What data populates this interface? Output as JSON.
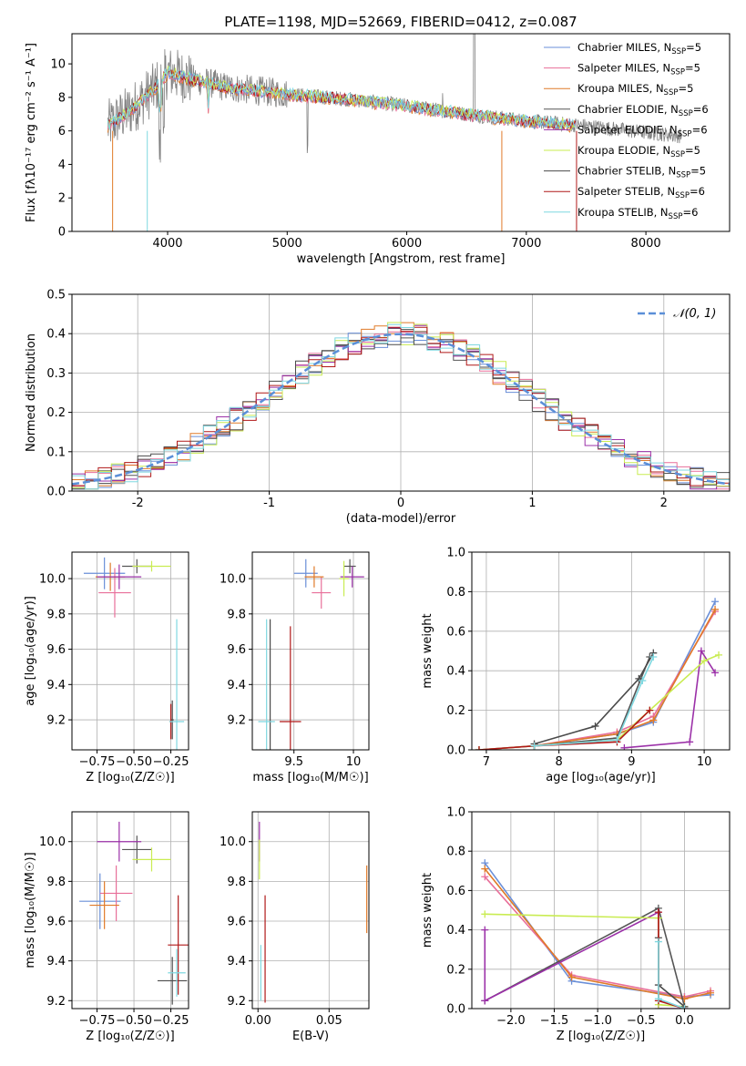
{
  "figure": {
    "title": "PLATE=1198, MJD=52669, FIBERID=0412, z=0.087"
  },
  "colors": {
    "Chabrier MILES": "#6a8fd8",
    "Salpeter MILES": "#e86f9a",
    "Kroupa MILES": "#e07a28",
    "Chabrier ELODIE": "#555555",
    "Salpeter ELODIE": "#9b30a8",
    "Kroupa ELODIE": "#c9ec52",
    "Chabrier STELIB": "#4a4a4a",
    "Salpeter STELIB": "#b01818",
    "Kroupa STELIB": "#7fd8e0",
    "data": "#808080",
    "normal": "#5b8fd8"
  },
  "chart_data": [
    {
      "id": "spectrum",
      "type": "line",
      "xlabel": "wavelength [Angstrom, rest frame]",
      "ylabel": "Flux [fλ10⁻¹⁷ erg cm⁻² s⁻¹ A⁻¹]",
      "xlim": [
        3200,
        8700
      ],
      "ylim": [
        0,
        11.8
      ],
      "xticks": [
        4000,
        5000,
        6000,
        7000,
        8000
      ],
      "yticks": [
        0,
        2,
        4,
        6,
        8,
        10
      ],
      "grid": false,
      "legend_position": "top-right",
      "legend": [
        {
          "label": "Chabrier MILES, N",
          "sub": "SSP",
          "suffix": "=5"
        },
        {
          "label": "Salpeter MILES, N",
          "sub": "SSP",
          "suffix": "=5"
        },
        {
          "label": "Kroupa MILES, N",
          "sub": "SSP",
          "suffix": "=5"
        },
        {
          "label": "Chabrier ELODIE, N",
          "sub": "SSP",
          "suffix": "=6"
        },
        {
          "label": "Salpeter ELODIE, N",
          "sub": "SSP",
          "suffix": "=6"
        },
        {
          "label": "Kroupa ELODIE, N",
          "sub": "SSP",
          "suffix": "=5"
        },
        {
          "label": "Chabrier STELIB, N",
          "sub": "SSP",
          "suffix": "=5"
        },
        {
          "label": "Salpeter STELIB, N",
          "sub": "SSP",
          "suffix": "=6"
        },
        {
          "label": "Kroupa STELIB, N",
          "sub": "SSP",
          "suffix": "=6"
        }
      ],
      "observed_continuum": {
        "x": [
          3500,
          3700,
          3900,
          4000,
          4200,
          4500,
          5000,
          5500,
          6000,
          6500,
          7000,
          7500,
          8000,
          8300
        ],
        "y": [
          6.3,
          7.3,
          8.6,
          9.5,
          9.1,
          8.6,
          8.2,
          7.9,
          7.5,
          7.0,
          6.6,
          6.3,
          5.9,
          5.7
        ]
      },
      "model_continuum": {
        "x": [
          3500,
          3700,
          3900,
          4000,
          4200,
          4500,
          5000,
          5500,
          6000,
          6500,
          7000,
          7500
        ],
        "y": [
          6.2,
          7.2,
          8.5,
          9.4,
          9.0,
          8.5,
          8.1,
          7.8,
          7.4,
          6.9,
          6.5,
          6.2
        ]
      },
      "model_end_wavelength": 7420
    },
    {
      "id": "residuals",
      "type": "line",
      "xlabel": "(data-model)/error",
      "ylabel": "Normed distribution",
      "xlim": [
        -2.5,
        2.5
      ],
      "ylim": [
        0,
        0.5
      ],
      "xticks": [
        -2,
        -1,
        0,
        1,
        2
      ],
      "yticks": [
        0.0,
        0.1,
        0.2,
        0.3,
        0.4,
        0.5
      ],
      "grid": true,
      "legend_position": "top-right",
      "legend_label": "𝒩(0, 1)",
      "normal_mean": 0,
      "normal_sigma": 1
    },
    {
      "id": "age_vs_Z",
      "type": "scatter",
      "xlabel": "Z [log₁₀(Z/Z☉)]",
      "ylabel": "age  [log₁₀(age/yr)]",
      "xlim": [
        -0.92,
        -0.13
      ],
      "ylim": [
        9.03,
        10.15
      ],
      "xticks": [
        -0.75,
        -0.5,
        -0.25
      ],
      "xticklabels": [
        "−0.75",
        "−0.50",
        "−0.25"
      ],
      "yticks": [
        9.2,
        9.4,
        9.6,
        9.8,
        10.0
      ],
      "grid": true,
      "points": [
        {
          "model": "Chabrier MILES",
          "x": -0.7,
          "xerr": 0.14,
          "y": 10.03,
          "yerr": 0.09
        },
        {
          "model": "Salpeter MILES",
          "x": -0.63,
          "xerr": 0.11,
          "y": 9.92,
          "yerr": 0.14
        },
        {
          "model": "Kroupa MILES",
          "x": -0.66,
          "xerr": 0.1,
          "y": 10.01,
          "yerr": 0.08
        },
        {
          "model": "Chabrier ELODIE",
          "x": -0.48,
          "xerr": 0.1,
          "y": 10.07,
          "yerr": 0.04
        },
        {
          "model": "Salpeter ELODIE",
          "x": -0.6,
          "xerr": 0.15,
          "y": 10.01,
          "yerr": 0.07
        },
        {
          "model": "Kroupa ELODIE",
          "x": -0.38,
          "xerr": 0.13,
          "y": 10.07,
          "yerr": 0.03
        },
        {
          "model": "Chabrier STELIB",
          "x": -0.24,
          "xerr": 0.01,
          "y": 9.2,
          "yerr": 0.11
        },
        {
          "model": "Salpeter STELIB",
          "x": -0.25,
          "xerr": 0.01,
          "y": 9.19,
          "yerr": 0.1
        },
        {
          "model": "Kroupa STELIB",
          "x": -0.21,
          "xerr": 0.05,
          "y": 9.19,
          "yerr": 0.58
        }
      ]
    },
    {
      "id": "age_vs_mass",
      "type": "scatter",
      "xlabel": "mass [log₁₀(M/M☉)]",
      "ylabel": "",
      "xlim": [
        9.15,
        10.13
      ],
      "ylim": [
        9.03,
        10.15
      ],
      "xticks": [
        9.5,
        10.0
      ],
      "yticks": [
        9.2,
        9.4,
        9.6,
        9.8,
        10.0
      ],
      "grid": true,
      "points": [
        {
          "model": "Chabrier MILES",
          "x": 9.6,
          "xerr": 0.1,
          "y": 10.03,
          "yerr": 0.08
        },
        {
          "model": "Salpeter MILES",
          "x": 9.73,
          "xerr": 0.08,
          "y": 9.92,
          "yerr": 0.09
        },
        {
          "model": "Kroupa MILES",
          "x": 9.67,
          "xerr": 0.08,
          "y": 10.01,
          "yerr": 0.06
        },
        {
          "model": "Chabrier ELODIE",
          "x": 9.97,
          "xerr": 0.05,
          "y": 10.07,
          "yerr": 0.04
        },
        {
          "model": "Salpeter ELODIE",
          "x": 9.99,
          "xerr": 0.1,
          "y": 10.01,
          "yerr": 0.06
        },
        {
          "model": "Kroupa ELODIE",
          "x": 9.92,
          "xerr": 0.04,
          "y": 10.0,
          "yerr": 0.1
        },
        {
          "model": "Chabrier STELIB",
          "x": 9.3,
          "xerr": 0.01,
          "y": 9.19,
          "yerr": 0.58
        },
        {
          "model": "Salpeter STELIB",
          "x": 9.47,
          "xerr": 0.09,
          "y": 9.19,
          "yerr": 0.54
        },
        {
          "model": "Kroupa STELIB",
          "x": 9.27,
          "xerr": 0.07,
          "y": 9.19,
          "yerr": 0.58
        }
      ]
    },
    {
      "id": "massweight_vs_age",
      "type": "line",
      "xlabel": "age  [log₁₀(age/yr)]",
      "ylabel": "mass weight",
      "xlim": [
        6.8,
        10.35
      ],
      "ylim": [
        0,
        1.0
      ],
      "xticks": [
        7,
        8,
        9,
        10
      ],
      "yticks": [
        0.0,
        0.2,
        0.4,
        0.6,
        0.8,
        1.0
      ],
      "grid": true,
      "series": [
        {
          "model": "Chabrier MILES",
          "x": [
            7.66,
            8.8,
            9.3,
            10.15
          ],
          "y": [
            0.02,
            0.08,
            0.14,
            0.75
          ]
        },
        {
          "model": "Salpeter MILES",
          "x": [
            7.66,
            8.8,
            9.3,
            10.15
          ],
          "y": [
            0.02,
            0.09,
            0.17,
            0.7
          ]
        },
        {
          "model": "Kroupa MILES",
          "x": [
            7.66,
            8.8,
            9.3,
            10.15
          ],
          "y": [
            0.02,
            0.08,
            0.15,
            0.71
          ]
        },
        {
          "model": "Chabrier ELODIE",
          "x": [
            6.9,
            7.66,
            8.8,
            9.25
          ],
          "y": [
            0.0,
            0.02,
            0.06,
            0.47
          ]
        },
        {
          "model": "Salpeter ELODIE",
          "x": [
            8.9,
            9.8,
            9.96,
            10.15
          ],
          "y": [
            0.01,
            0.04,
            0.5,
            0.39
          ]
        },
        {
          "model": "Kroupa ELODIE",
          "x": [
            6.9,
            7.66,
            8.8,
            9.25,
            10.0,
            10.2
          ],
          "y": [
            0.0,
            0.02,
            0.05,
            0.2,
            0.45,
            0.48
          ]
        },
        {
          "model": "Chabrier STELIB",
          "x": [
            7.66,
            8.5,
            9.1,
            9.3
          ],
          "y": [
            0.03,
            0.12,
            0.36,
            0.49
          ]
        },
        {
          "model": "Salpeter STELIB",
          "x": [
            6.9,
            7.66,
            8.8,
            9.25
          ],
          "y": [
            0.0,
            0.02,
            0.04,
            0.2
          ]
        },
        {
          "model": "Kroupa STELIB",
          "x": [
            7.66,
            8.8,
            9.15,
            9.3
          ],
          "y": [
            0.02,
            0.05,
            0.35,
            0.47
          ]
        }
      ]
    },
    {
      "id": "mass_vs_Z",
      "type": "scatter",
      "xlabel": "Z [log₁₀(Z/Z☉)]",
      "ylabel": "mass [log₁₀(M/M☉)]",
      "xlim": [
        -0.92,
        -0.13
      ],
      "ylim": [
        9.16,
        10.15
      ],
      "xticks": [
        -0.75,
        -0.5,
        -0.25
      ],
      "xticklabels": [
        "−0.75",
        "−0.50",
        "−0.25"
      ],
      "yticks": [
        9.2,
        9.4,
        9.6,
        9.8,
        10.0
      ],
      "grid": true,
      "points": [
        {
          "model": "Chabrier MILES",
          "x": -0.73,
          "xerr": 0.14,
          "y": 9.7,
          "yerr": 0.14
        },
        {
          "model": "Salpeter MILES",
          "x": -0.62,
          "xerr": 0.11,
          "y": 9.74,
          "yerr": 0.14
        },
        {
          "model": "Kroupa MILES",
          "x": -0.7,
          "xerr": 0.1,
          "y": 9.68,
          "yerr": 0.12
        },
        {
          "model": "Chabrier ELODIE",
          "x": -0.48,
          "xerr": 0.1,
          "y": 9.96,
          "yerr": 0.07
        },
        {
          "model": "Salpeter ELODIE",
          "x": -0.6,
          "xerr": 0.15,
          "y": 10.0,
          "yerr": 0.1
        },
        {
          "model": "Kroupa ELODIE",
          "x": -0.38,
          "xerr": 0.13,
          "y": 9.91,
          "yerr": 0.06
        },
        {
          "model": "Chabrier STELIB",
          "x": -0.24,
          "xerr": 0.1,
          "y": 9.3,
          "yerr": 0.12
        },
        {
          "model": "Salpeter STELIB",
          "x": -0.2,
          "xerr": 0.07,
          "y": 9.48,
          "yerr": 0.25
        },
        {
          "model": "Kroupa STELIB",
          "x": -0.21,
          "xerr": 0.06,
          "y": 9.34,
          "yerr": 0.12
        }
      ]
    },
    {
      "id": "mass_vs_ebv",
      "type": "scatter",
      "xlabel": "E(B-V)",
      "ylabel": "",
      "xlim": [
        -0.004,
        0.078
      ],
      "ylim": [
        9.16,
        10.15
      ],
      "xticks": [
        0.0,
        0.05
      ],
      "xticklabels": [
        "0.00",
        "0.05"
      ],
      "yticks": [
        9.2,
        9.4,
        9.6,
        9.8,
        10.0
      ],
      "grid": true,
      "points": [
        {
          "model": "Kroupa MILES",
          "x": 0.0765,
          "xerr": 0,
          "y": 9.71,
          "yerr": 0.17
        },
        {
          "model": "Salpeter STELIB",
          "x": 0.005,
          "xerr": 0,
          "y": 9.46,
          "yerr": 0.27
        },
        {
          "model": "Kroupa STELIB",
          "x": 0.002,
          "xerr": 0,
          "y": 9.34,
          "yerr": 0.14
        },
        {
          "model": "Salpeter ELODIE",
          "x": 0.001,
          "xerr": 0,
          "y": 10.0,
          "yerr": 0.1
        },
        {
          "model": "Kroupa ELODIE",
          "x": 0.001,
          "xerr": 0,
          "y": 9.91,
          "yerr": 0.1
        }
      ]
    },
    {
      "id": "massweight_vs_Z",
      "type": "line",
      "xlabel": "Z [log₁₀(Z/Z☉)]",
      "ylabel": "mass weight",
      "xlim": [
        -2.45,
        0.52
      ],
      "ylim": [
        0,
        1.0
      ],
      "xticks": [
        -2.0,
        -1.5,
        -1.0,
        -0.5,
        0.0
      ],
      "xticklabels": [
        "−2.0",
        "−1.5",
        "−1.0",
        "−0.5",
        "0.0"
      ],
      "yticks": [
        0.0,
        0.2,
        0.4,
        0.6,
        0.8,
        1.0
      ],
      "grid": true,
      "series": [
        {
          "model": "Chabrier MILES",
          "x": [
            -2.3,
            -1.3,
            0.0,
            0.3
          ],
          "y": [
            0.74,
            0.14,
            0.06,
            0.07
          ]
        },
        {
          "model": "Salpeter MILES",
          "x": [
            -2.3,
            -1.3,
            0.0,
            0.3
          ],
          "y": [
            0.67,
            0.17,
            0.06,
            0.09
          ]
        },
        {
          "model": "Kroupa MILES",
          "x": [
            -2.3,
            -1.3,
            0.0,
            0.3
          ],
          "y": [
            0.71,
            0.16,
            0.05,
            0.08
          ]
        },
        {
          "model": "Chabrier ELODIE",
          "x": [
            -2.3,
            -0.3,
            0.0
          ],
          "y": [
            0.04,
            0.51,
            0.01
          ]
        },
        {
          "model": "Salpeter ELODIE",
          "x": [
            -2.3,
            -2.3,
            -0.3,
            -0.3,
            0.0
          ],
          "y": [
            0.4,
            0.04,
            0.49,
            0.0,
            0.0
          ]
        },
        {
          "model": "Kroupa ELODIE",
          "x": [
            -2.3,
            -0.3,
            -0.3,
            0.0
          ],
          "y": [
            0.48,
            0.46,
            0.02,
            0.01
          ]
        },
        {
          "model": "Chabrier STELIB",
          "x": [
            -0.3,
            -0.3,
            0.0
          ],
          "y": [
            0.36,
            0.12,
            0.01
          ]
        },
        {
          "model": "Salpeter STELIB",
          "x": [
            -0.3,
            -0.3,
            0.0
          ],
          "y": [
            0.49,
            0.04,
            0.0
          ]
        },
        {
          "model": "Kroupa STELIB",
          "x": [
            -0.3,
            -0.3,
            0.0
          ],
          "y": [
            0.34,
            0.05,
            0.0
          ]
        }
      ]
    }
  ]
}
